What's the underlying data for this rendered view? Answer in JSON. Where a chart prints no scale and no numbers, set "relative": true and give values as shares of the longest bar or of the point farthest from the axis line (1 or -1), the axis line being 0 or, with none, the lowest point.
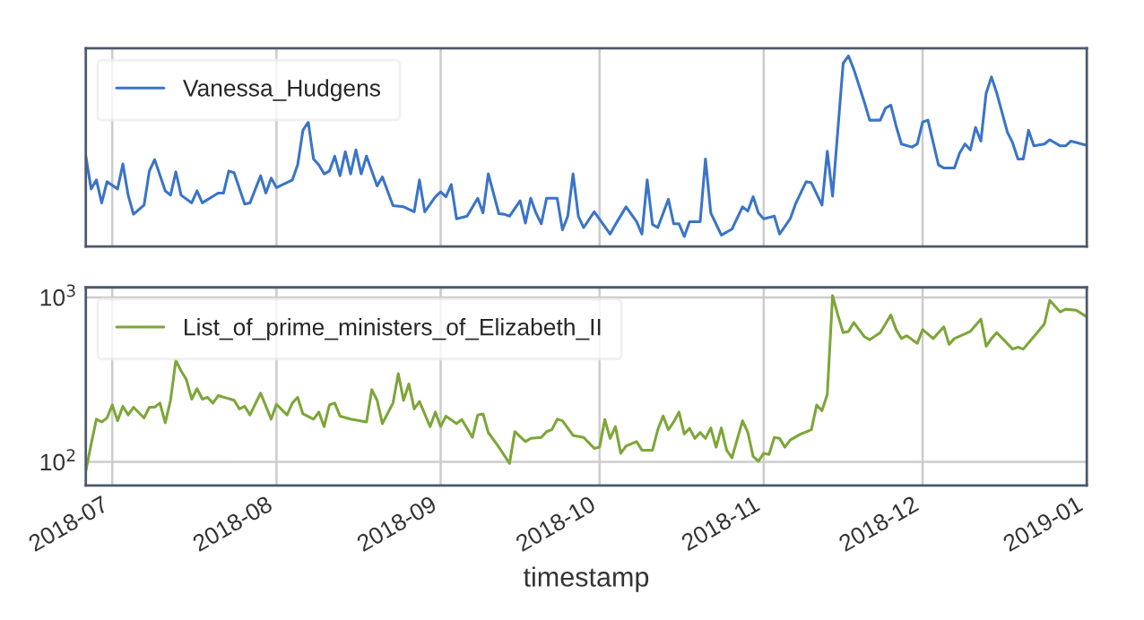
{
  "chart_data": [
    {
      "type": "line",
      "relative": true,
      "grid": true,
      "legend": "top left",
      "tick_labels": false,
      "x": [
        "2018-06-26",
        "2018-06-27",
        "2018-06-28",
        "2018-06-29",
        "2018-06-30",
        "2018-07-02",
        "2018-07-03",
        "2018-07-04",
        "2018-07-05",
        "2018-07-07",
        "2018-07-08",
        "2018-07-09",
        "2018-07-11",
        "2018-07-12",
        "2018-07-13",
        "2018-07-14",
        "2018-07-16",
        "2018-07-17",
        "2018-07-18",
        "2018-07-21",
        "2018-07-22",
        "2018-07-23",
        "2018-07-24",
        "2018-07-26",
        "2018-07-27",
        "2018-07-29",
        "2018-07-30",
        "2018-07-31",
        "2018-08-01",
        "2018-08-04",
        "2018-08-05",
        "2018-08-06",
        "2018-08-07",
        "2018-08-08",
        "2018-08-09",
        "2018-08-10",
        "2018-08-11",
        "2018-08-12",
        "2018-08-13",
        "2018-08-14",
        "2018-08-15",
        "2018-08-16",
        "2018-08-17",
        "2018-08-18",
        "2018-08-20",
        "2018-08-21",
        "2018-08-23",
        "2018-08-25",
        "2018-08-27",
        "2018-08-28",
        "2018-08-29",
        "2018-08-31",
        "2018-09-01",
        "2018-09-02",
        "2018-09-03",
        "2018-09-04",
        "2018-09-06",
        "2018-09-08",
        "2018-09-09",
        "2018-09-10",
        "2018-09-12",
        "2018-09-13",
        "2018-09-14",
        "2018-09-16",
        "2018-09-17",
        "2018-09-18",
        "2018-09-19",
        "2018-09-20",
        "2018-09-21",
        "2018-09-23",
        "2018-09-24",
        "2018-09-25",
        "2018-09-26",
        "2018-09-27",
        "2018-09-28",
        "2018-09-30",
        "2018-10-03",
        "2018-10-04",
        "2018-10-06",
        "2018-10-08",
        "2018-10-09",
        "2018-10-10",
        "2018-10-11",
        "2018-10-12",
        "2018-10-14",
        "2018-10-15",
        "2018-10-16",
        "2018-10-17",
        "2018-10-18",
        "2018-10-20",
        "2018-10-21",
        "2018-10-22",
        "2018-10-24",
        "2018-10-26",
        "2018-10-28",
        "2018-10-29",
        "2018-10-30",
        "2018-10-31",
        "2018-11-01",
        "2018-11-03",
        "2018-11-04",
        "2018-11-06",
        "2018-11-07",
        "2018-11-09",
        "2018-11-10",
        "2018-11-12",
        "2018-11-13",
        "2018-11-14",
        "2018-11-16",
        "2018-11-17",
        "2018-11-18",
        "2018-11-20",
        "2018-11-21",
        "2018-11-23",
        "2018-11-24",
        "2018-11-25",
        "2018-11-26",
        "2018-11-27",
        "2018-11-29",
        "2018-11-30",
        "2018-12-01",
        "2018-12-02",
        "2018-12-04",
        "2018-12-05",
        "2018-12-07",
        "2018-12-08",
        "2018-12-09",
        "2018-12-10",
        "2018-12-11",
        "2018-12-12",
        "2018-12-13",
        "2018-12-14",
        "2018-12-15",
        "2018-12-17",
        "2018-12-18",
        "2018-12-19",
        "2018-12-20",
        "2018-12-21",
        "2018-12-22",
        "2018-12-24",
        "2018-12-25",
        "2018-12-27",
        "2018-12-28",
        "2018-12-29",
        "2019-01-01"
      ],
      "xlim": [
        "2018-06-26",
        "2019-01-01"
      ],
      "series": [
        {
          "name": "Vanessa_Hudgens",
          "color": "#3a74c8",
          "values": [
            0.474,
            0.302,
            0.349,
            0.229,
            0.34,
            0.302,
            0.433,
            0.269,
            0.169,
            0.217,
            0.396,
            0.456,
            0.292,
            0.269,
            0.392,
            0.269,
            0.229,
            0.292,
            0.229,
            0.28,
            0.28,
            0.396,
            0.387,
            0.223,
            0.229,
            0.371,
            0.28,
            0.359,
            0.309,
            0.349,
            0.428,
            0.61,
            0.653,
            0.459,
            0.428,
            0.381,
            0.396,
            0.474,
            0.371,
            0.497,
            0.381,
            0.507,
            0.381,
            0.474,
            0.318,
            0.365,
            0.214,
            0.208,
            0.182,
            0.349,
            0.182,
            0.261,
            0.287,
            0.261,
            0.325,
            0.145,
            0.159,
            0.253,
            0.176,
            0.381,
            0.172,
            0.169,
            0.159,
            0.24,
            0.123,
            0.253,
            0.176,
            0.119,
            0.253,
            0.253,
            0.087,
            0.159,
            0.381,
            0.159,
            0.099,
            0.182,
            0.065,
            0.115,
            0.208,
            0.13,
            0.065,
            0.349,
            0.115,
            0.099,
            0.248,
            0.119,
            0.119,
            0.052,
            0.13,
            0.13,
            0.459,
            0.176,
            0.06,
            0.091,
            0.208,
            0.186,
            0.261,
            0.176,
            0.145,
            0.159,
            0.065,
            0.145,
            0.223,
            0.34,
            0.334,
            0.217,
            0.5,
            0.264,
            0.962,
            1.0,
            0.931,
            0.758,
            0.663,
            0.663,
            0.726,
            0.742,
            0.632,
            0.538,
            0.522,
            0.538,
            0.653,
            0.663,
            0.428,
            0.412,
            0.412,
            0.491,
            0.538,
            0.507,
            0.625,
            0.553,
            0.805,
            0.89,
            0.805,
            0.601,
            0.544,
            0.459,
            0.459,
            0.61,
            0.528,
            0.538,
            0.56,
            0.528,
            0.528,
            0.553,
            0.531
          ]
        }
      ]
    },
    {
      "type": "line",
      "log": true,
      "grid": true,
      "legend": "top left",
      "xlabel": "timestamp",
      "x": [
        "2018-06-26",
        "2018-06-27",
        "2018-06-28",
        "2018-06-29",
        "2018-06-30",
        "2018-07-01",
        "2018-07-02",
        "2018-07-03",
        "2018-07-04",
        "2018-07-05",
        "2018-07-07",
        "2018-07-08",
        "2018-07-09",
        "2018-07-10",
        "2018-07-11",
        "2018-07-12",
        "2018-07-13",
        "2018-07-14",
        "2018-07-15",
        "2018-07-16",
        "2018-07-17",
        "2018-07-18",
        "2018-07-19",
        "2018-07-20",
        "2018-07-21",
        "2018-07-24",
        "2018-07-25",
        "2018-07-26",
        "2018-07-27",
        "2018-07-29",
        "2018-07-31",
        "2018-08-01",
        "2018-08-03",
        "2018-08-04",
        "2018-08-05",
        "2018-08-06",
        "2018-08-08",
        "2018-08-09",
        "2018-08-10",
        "2018-08-11",
        "2018-08-12",
        "2018-08-13",
        "2018-08-15",
        "2018-08-18",
        "2018-08-19",
        "2018-08-20",
        "2018-08-21",
        "2018-08-23",
        "2018-08-24",
        "2018-08-25",
        "2018-08-26",
        "2018-08-27",
        "2018-08-28",
        "2018-08-30",
        "2018-08-31",
        "2018-09-01",
        "2018-09-02",
        "2018-09-04",
        "2018-09-05",
        "2018-09-07",
        "2018-09-08",
        "2018-09-09",
        "2018-09-10",
        "2018-09-12",
        "2018-09-14",
        "2018-09-15",
        "2018-09-17",
        "2018-09-18",
        "2018-09-20",
        "2018-09-21",
        "2018-09-22",
        "2018-09-23",
        "2018-09-24",
        "2018-09-26",
        "2018-09-28",
        "2018-09-30",
        "2018-10-01",
        "2018-10-02",
        "2018-10-03",
        "2018-10-04",
        "2018-10-05",
        "2018-10-06",
        "2018-10-08",
        "2018-10-09",
        "2018-10-11",
        "2018-10-12",
        "2018-10-13",
        "2018-10-14",
        "2018-10-15",
        "2018-10-16",
        "2018-10-17",
        "2018-10-18",
        "2018-10-19",
        "2018-10-20",
        "2018-10-21",
        "2018-10-22",
        "2018-10-23",
        "2018-10-24",
        "2018-10-25",
        "2018-10-26",
        "2018-10-28",
        "2018-10-29",
        "2018-10-30",
        "2018-10-31",
        "2018-11-01",
        "2018-11-02",
        "2018-11-03",
        "2018-11-04",
        "2018-11-05",
        "2018-11-06",
        "2018-11-08",
        "2018-11-10",
        "2018-11-11",
        "2018-11-12",
        "2018-11-13",
        "2018-11-14",
        "2018-11-15",
        "2018-11-16",
        "2018-11-17",
        "2018-11-18",
        "2018-11-19",
        "2018-11-20",
        "2018-11-21",
        "2018-11-23",
        "2018-11-25",
        "2018-11-26",
        "2018-11-27",
        "2018-11-28",
        "2018-11-30",
        "2018-12-01",
        "2018-12-03",
        "2018-12-05",
        "2018-12-06",
        "2018-12-07",
        "2018-12-09",
        "2018-12-10",
        "2018-12-12",
        "2018-12-13",
        "2018-12-14",
        "2018-12-15",
        "2018-12-18",
        "2018-12-19",
        "2018-12-20",
        "2018-12-22",
        "2018-12-24",
        "2018-12-25",
        "2018-12-26",
        "2018-12-27",
        "2018-12-28",
        "2018-12-30",
        "2019-01-01"
      ],
      "xlim": [
        "2018-06-26",
        "2019-01-01"
      ],
      "xticks": [
        {
          "value": "2018-07-01",
          "label": "2018-07"
        },
        {
          "value": "2018-08-01",
          "label": "2018-08"
        },
        {
          "value": "2018-09-01",
          "label": "2018-09"
        },
        {
          "value": "2018-10-01",
          "label": "2018-10"
        },
        {
          "value": "2018-11-01",
          "label": "2018-11"
        },
        {
          "value": "2018-12-01",
          "label": "2018-12"
        },
        {
          "value": "2019-01-01",
          "label": "2019-01"
        }
      ],
      "ylim": [
        72,
        1150
      ],
      "yticks": [
        {
          "value": 100,
          "label": "10$^{2}$"
        },
        {
          "value": 1000,
          "label": "10$^{3}$"
        }
      ],
      "series": [
        {
          "name": "List_of_prime_ministers_of_Elizabeth_II",
          "color": "#7da638",
          "values": [
            88,
            128,
            182,
            175,
            185,
            222,
            178,
            218,
            193,
            215,
            185,
            215,
            215,
            228,
            173,
            237,
            414,
            357,
            316,
            241,
            279,
            241,
            247,
            228,
            253,
            237,
            210,
            218,
            193,
            262,
            182,
            224,
            193,
            228,
            247,
            196,
            182,
            201,
            164,
            222,
            228,
            190,
            182,
            175,
            275,
            237,
            171,
            228,
            344,
            237,
            298,
            210,
            233,
            164,
            201,
            164,
            190,
            171,
            181,
            141,
            193,
            196,
            151,
            123,
            98,
            153,
            133,
            139,
            141,
            153,
            157,
            182,
            178,
            145,
            141,
            121,
            123,
            181,
            139,
            164,
            113,
            125,
            133,
            118,
            118,
            157,
            190,
            157,
            175,
            201,
            148,
            160,
            139,
            151,
            139,
            161,
            123,
            161,
            118,
            106,
            178,
            151,
            108,
            101,
            113,
            111,
            141,
            139,
            123,
            136,
            148,
            157,
            222,
            205,
            257,
            1025,
            781,
            611,
            621,
            703,
            637,
            577,
            553,
            611,
            781,
            637,
            562,
            585,
            526,
            637,
            562,
            662,
            518,
            562,
            600,
            621,
            738,
            505,
            562,
            611,
            485,
            498,
            485,
            577,
            690,
            959,
            884,
            815,
            847,
            836,
            762
          ]
        }
      ]
    }
  ]
}
